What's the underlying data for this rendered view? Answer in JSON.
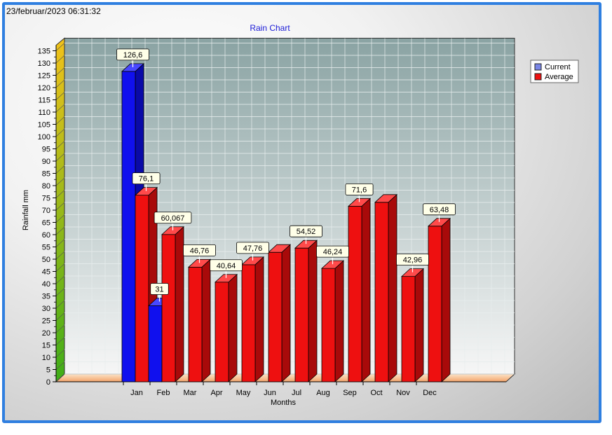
{
  "timestamp": "23/februar/2023 06:31:32",
  "chart_data": {
    "type": "bar",
    "title": "Rain Chart",
    "xlabel": "Months",
    "ylabel": "Rainfall mm",
    "ylim": [
      0,
      135
    ],
    "yticks": [
      0,
      5,
      10,
      15,
      20,
      25,
      30,
      35,
      40,
      45,
      50,
      55,
      60,
      65,
      70,
      75,
      80,
      85,
      90,
      95,
      100,
      105,
      110,
      115,
      120,
      125,
      130,
      135
    ],
    "categories": [
      "Jan",
      "Feb",
      "Mar",
      "Apr",
      "May",
      "Jun",
      "Jul",
      "Aug",
      "Sep",
      "Oct",
      "Nov",
      "Dec"
    ],
    "series": [
      {
        "name": "Current",
        "color": "#1010ee",
        "values": [
          126.6,
          31,
          null,
          null,
          null,
          null,
          null,
          null,
          null,
          null,
          null,
          null
        ],
        "labels": [
          "126,6",
          "31",
          "",
          "",
          "",
          "",
          "",
          "",
          "",
          "",
          "",
          ""
        ]
      },
      {
        "name": "Average",
        "color": "#ee1010",
        "values": [
          76.1,
          60.067,
          46.76,
          40.64,
          47.76,
          52.8,
          54.52,
          46.24,
          71.6,
          73.2,
          42.96,
          63.48
        ],
        "labels": [
          "76,1",
          "60,067",
          "46,76",
          "40,64",
          "47,76",
          "",
          "54,52",
          "46,24",
          "71,6",
          "",
          "42,96",
          "63,48"
        ]
      }
    ],
    "legend_position": "right",
    "grid": true
  }
}
